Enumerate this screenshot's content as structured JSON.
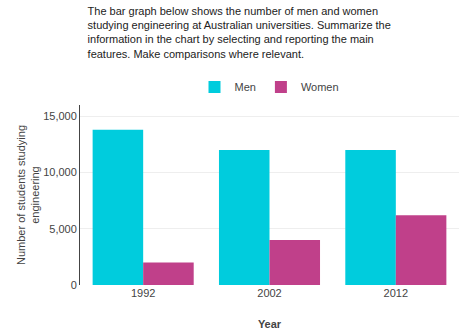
{
  "chart_data": {
    "type": "bar",
    "title": "The bar graph below shows the number of men and women\nstudying engineering at Australian universities. Summarize the\ninformation in the chart by selecting and reporting the main\nfeatures. Make comparisons where relevant.",
    "xlabel": "Year",
    "ylabel": "Number of students studying\nengineering",
    "categories": [
      "1992",
      "2002",
      "2012"
    ],
    "series": [
      {
        "name": "Men",
        "color": "#00CCDD",
        "values": [
          13800,
          12000,
          12000
        ]
      },
      {
        "name": "Women",
        "color": "#C0408A",
        "values": [
          2000,
          4000,
          6200
        ]
      }
    ],
    "ylim": [
      0,
      16000
    ],
    "yticks": [
      0,
      {
        "value": 5000,
        "label": "5,000"
      },
      {
        "value": 10000,
        "label": "10,000"
      },
      {
        "value": 15000,
        "label": "15,000"
      }
    ],
    "grid": true,
    "legend": "top"
  }
}
